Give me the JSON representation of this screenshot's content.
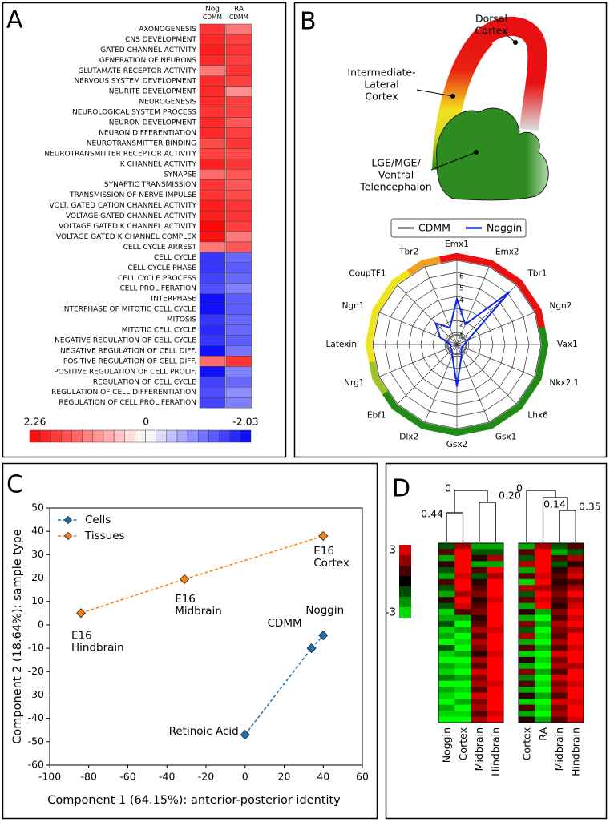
{
  "chart_data": [
    {
      "type": "heatmap",
      "panel": "A",
      "categories": [
        "AXONOGENESIS",
        "CNS DEVELOPMENT",
        "GATED CHANNEL ACTIVITY",
        "GENERATION OF NEURONS",
        "GLUTAMATE RECEPTOR ACTIVITY",
        "NERVOUS SYSTEM DEVELOPMENT",
        "NEURITE DEVELOPMENT",
        "NEUROGENESIS",
        "NEUROLOGICAL SYSTEM PROCESS",
        "NEURON DEVELOPMENT",
        "NEURON DIFFERENTIATION",
        "NEUROTRANSMITTER BINDING",
        "NEUROTRANSMITTER RECEPTOR ACTIVITY",
        "K CHANNEL ACTIVITY",
        "SYNAPSE",
        "SYNAPTIC TRANSMISSION",
        "TRANSMISSION OF NERVE IMPULSE",
        "VOLT. GATED CATION CHANNEL ACTIVITY",
        "VOLTAGE GATED CHANNEL ACTIVITY",
        "VOLTAGE GATED K CHANNEL ACTIVITY",
        "VOLTAGE GATED K CHANNEL COMPLEX",
        "CELL CYCLE ARREST",
        "CELL CYCLE",
        "CELL CYCLE PHASE",
        "CELL CYCLE PROCESS",
        "CELL PROLIFERATION",
        "INTERPHASE",
        "INTERPHASE OF MITOTIC CELL CYCLE",
        "MITOSIS",
        "MITOTIC CELL CYCLE",
        "NEGATIVE REGULATION OF CELL CYCLE",
        "NEGATIVE REGULATION OF CELL DIFF.",
        "POSITIVE REGULATION OF CELL DIFF.",
        "POSITIVE REGULATION OF CELL PROLIF.",
        "REGULATION OF CELL CYCLE",
        "REGULATION OF CELL DIFFERENTIATION",
        "REGULATION OF CELL PROLIFERATION"
      ],
      "series": [
        {
          "name": "Nog",
          "reference": "CDMM",
          "values": [
            1.8,
            1.9,
            2.0,
            1.9,
            1.2,
            1.9,
            1.9,
            1.9,
            1.8,
            1.9,
            1.9,
            1.6,
            1.7,
            2.0,
            1.3,
            1.8,
            1.8,
            2.0,
            2.0,
            2.2,
            2.1,
            1.2,
            -1.6,
            -1.6,
            -1.5,
            -1.4,
            -1.9,
            -1.9,
            -1.6,
            -1.7,
            -1.6,
            -1.9,
            1.3,
            -1.9,
            -1.5,
            -1.4,
            -1.5
          ]
        },
        {
          "name": "RA",
          "reference": "CDMM",
          "values": [
            1.2,
            1.7,
            1.8,
            1.7,
            1.8,
            1.7,
            1.0,
            1.7,
            1.7,
            1.5,
            1.7,
            1.8,
            1.6,
            1.8,
            1.5,
            1.5,
            1.6,
            1.8,
            1.8,
            1.7,
            1.2,
            1.5,
            -1.2,
            -1.3,
            -1.2,
            -1.0,
            -1.3,
            -1.3,
            -1.2,
            -1.2,
            -1.3,
            -1.1,
            1.8,
            -1.0,
            -1.2,
            -0.9,
            -1.0
          ]
        }
      ],
      "colors": [
        "#0000ff",
        "#ffffff",
        "#ff0000"
      ],
      "clim": [
        -2.03,
        2.26
      ],
      "cticks": [
        2.26,
        0,
        -2.03
      ]
    },
    {
      "type": "radar",
      "categories": [
        "Emx1",
        "Emx2",
        "Tbr1",
        "Ngn2",
        "Vax1",
        "Nkx2.1",
        "Lhx6",
        "Gsx1",
        "Gsx2",
        "Dlx2",
        "Ebf1",
        "Nrg1",
        "Latexin",
        "Ngn1",
        "CoupTF1",
        "Tbr2"
      ],
      "series": [
        {
          "name": "CDMM",
          "color": "#6e6e6e",
          "values": [
            0.8,
            0.8,
            0.8,
            0.8,
            0.8,
            0.8,
            0.8,
            0.8,
            0.8,
            0.8,
            0.8,
            0.8,
            0.8,
            0.8,
            0.8,
            0.8
          ]
        },
        {
          "name": "Noggin",
          "color": "#1028e0",
          "values": [
            3.8,
            1.8,
            6.2,
            1.0,
            0.6,
            0.5,
            0.5,
            1.0,
            3.5,
            1.0,
            0.6,
            0.6,
            0.5,
            1.5,
            2.5,
            1.5
          ]
        }
      ],
      "rlim": [
        0,
        7
      ],
      "rticks": [
        1,
        2,
        3,
        4,
        5,
        6
      ],
      "ring_colors": [
        "#e81010",
        "#e81010",
        "#e81010",
        "#e81010",
        "#228a16",
        "#228a16",
        "#228a16",
        "#228a16",
        "#228a16",
        "#228a16",
        "#228a16",
        "#9cc42a",
        "#f2e41c",
        "#f2e41c",
        "#f2e41c",
        "#f0a020"
      ]
    },
    {
      "type": "line",
      "panel": "C",
      "xlabel": "Component 1 (64.15%): anterior-posterior identity",
      "ylabel": "Component 2 (18.64%): sample type",
      "series": [
        {
          "name": "Cells",
          "color": "#1f6fb4",
          "x": [
            0,
            34,
            40
          ],
          "values": [
            -47,
            -10,
            -4.5
          ],
          "labels": [
            "Retinoic Acid",
            "CDMM",
            "Noggin"
          ]
        },
        {
          "name": "Tissues",
          "color": "#ff7f0e",
          "x": [
            -84,
            -31,
            40
          ],
          "values": [
            5,
            19.5,
            38
          ],
          "labels": [
            [
              "E16",
              "Hindbrain"
            ],
            [
              "E16",
              "Midbrain"
            ],
            [
              "E16",
              "Cortex"
            ]
          ]
        }
      ],
      "xlim": [
        -100,
        60
      ],
      "xticks": [
        -100,
        -80,
        -60,
        -40,
        -20,
        0,
        20,
        40,
        60
      ],
      "ylim": [
        -60,
        50
      ],
      "yticks": [
        -60,
        -50,
        -40,
        -30,
        -20,
        -10,
        0,
        10,
        20,
        30,
        40,
        50
      ]
    },
    {
      "type": "heatmap",
      "panel": "D",
      "series": [
        {
          "name": "Noggin",
          "values": [
            -1,
            1,
            -2,
            0.5,
            -1,
            -2,
            1,
            -1,
            -2,
            0.5,
            -1,
            -2.5,
            -2,
            -1,
            -2.5,
            -2,
            -3,
            -1,
            -2.5,
            -3,
            -2,
            -2.5,
            -1.5,
            -3,
            -2,
            -2.5,
            -3,
            -2,
            -2.5,
            -3
          ]
        },
        {
          "name": "Cortex",
          "values": [
            2,
            3,
            3,
            3,
            3,
            2.5,
            3,
            3,
            2,
            3,
            2.5,
            1,
            -2,
            -3,
            -2,
            -3,
            -2.5,
            -3,
            -2,
            -3,
            -2.5,
            -3,
            -2,
            -3,
            -2.5,
            -3,
            -2,
            -3,
            -2.5,
            -3
          ]
        },
        {
          "name": "Midbrain",
          "values": [
            -2,
            -1,
            0.5,
            -2,
            1,
            -1,
            0.5,
            1,
            1.5,
            0.5,
            1,
            1.5,
            0.5,
            1,
            2,
            1,
            2,
            1.5,
            0.5,
            2,
            1,
            2.5,
            1.5,
            2,
            1,
            2.5,
            1.5,
            2,
            1,
            2
          ]
        },
        {
          "name": "Hindbrain",
          "values": [
            -2,
            -1,
            2,
            -2,
            3,
            2,
            3,
            3,
            3,
            2.5,
            3,
            3,
            3,
            3,
            2.5,
            3,
            3,
            3,
            2.5,
            3,
            3,
            3,
            3,
            2.5,
            3,
            3,
            3,
            3,
            2.5,
            3
          ]
        }
      ],
      "dendrogram": [
        0,
        0.44,
        {
          "value": 0.2,
          "label": "0.20"
        }
      ],
      "colors": [
        "#00ff00",
        "#000000",
        "#ff0000"
      ],
      "clim": [
        -3,
        3
      ],
      "cticks": [
        3,
        -3
      ]
    },
    {
      "type": "heatmap",
      "series": [
        {
          "name": "Cortex",
          "values": [
            -2,
            1,
            -1,
            2,
            -2,
            1,
            -2.5,
            2,
            -1,
            1,
            -2,
            0.5,
            -2,
            1.5,
            -1,
            2,
            -2,
            1,
            -2.5,
            0.5,
            -2,
            1.5,
            -1.5,
            1,
            -2,
            0.5,
            -2.5,
            1,
            -2,
            0.5
          ]
        },
        {
          "name": "RA",
          "values": [
            2,
            3,
            3,
            3,
            3,
            2.5,
            3,
            2,
            3,
            2.5,
            3,
            -2,
            -3,
            -2,
            -3,
            -2.5,
            -3,
            -2,
            -3,
            -2.5,
            -3,
            -2,
            -3,
            -2.5,
            -3,
            -2,
            -3,
            -2.5,
            -3,
            -2
          ]
        },
        {
          "name": "Midbrain",
          "values": [
            -1,
            -2,
            1,
            -1,
            0.5,
            1,
            0.5,
            1,
            1.5,
            1,
            0.5,
            1.5,
            1,
            2,
            1.5,
            1,
            2,
            1,
            2.5,
            1.5,
            2,
            1,
            2.5,
            1.5,
            2,
            1,
            2.5,
            1.5,
            2,
            1
          ]
        },
        {
          "name": "Hindbrain",
          "values": [
            1,
            -1,
            2,
            0.5,
            2,
            2.5,
            1,
            2,
            3,
            2,
            2.5,
            3,
            2.5,
            3,
            2,
            3,
            3,
            2.5,
            3,
            3,
            2,
            3,
            3,
            2.5,
            3,
            3,
            2.5,
            3,
            3,
            2.5
          ]
        }
      ],
      "dendrogram": [
        0,
        0.14,
        0.35
      ],
      "colors": [
        "#00ff00",
        "#000000",
        "#ff0000"
      ],
      "clim": [
        -3,
        3
      ]
    }
  ],
  "diagram": {
    "panel": "B",
    "regions": [
      {
        "label": [
          "Dorsal",
          "Cortex"
        ]
      },
      {
        "label": [
          "Intermediate-",
          "Lateral",
          "Cortex"
        ]
      },
      {
        "label": [
          "LGE/MGE/",
          "Ventral",
          "Telencephalon"
        ]
      }
    ]
  }
}
